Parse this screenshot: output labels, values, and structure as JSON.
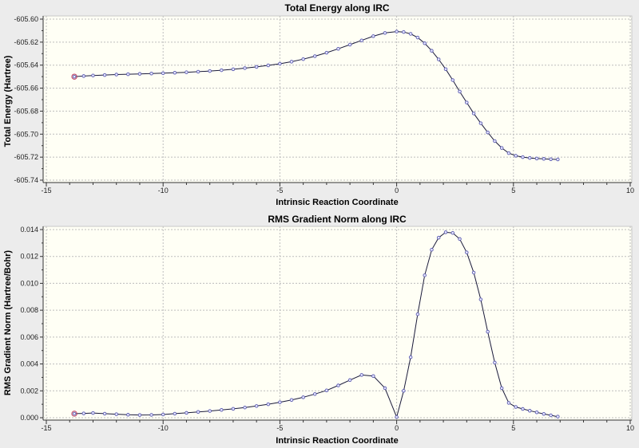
{
  "chart_data": [
    {
      "type": "line",
      "title": "Total Energy along IRC",
      "xlabel": "Intrinsic Reaction Coordinate",
      "ylabel": "Total Energy (Hartree)",
      "xlim": [
        -15,
        10
      ],
      "ylim": [
        -605.74,
        -605.6
      ],
      "xticks": [
        "-15",
        "-10",
        "-5",
        "0",
        "5",
        "10"
      ],
      "yticks": [
        "-605.60",
        "-605.62",
        "-605.64",
        "-605.66",
        "-605.68",
        "-605.70",
        "-605.72",
        "-605.74"
      ],
      "grid": true,
      "line_color": "#1a1a3a",
      "marker_color": "#5a5ab0",
      "highlight_color": "#c04060",
      "x": [
        -13.8,
        -13.4,
        -13.0,
        -12.5,
        -12,
        -11.5,
        -11,
        -10.5,
        -10,
        -9.5,
        -9,
        -8.5,
        -8,
        -7.5,
        -7,
        -6.5,
        -6,
        -5.5,
        -5,
        -4.5,
        -4,
        -3.5,
        -3,
        -2.5,
        -2,
        -1.5,
        -1,
        -0.5,
        0,
        0.3,
        0.6,
        0.9,
        1.2,
        1.5,
        1.8,
        2.1,
        2.4,
        2.7,
        3.0,
        3.3,
        3.6,
        3.9,
        4.2,
        4.5,
        4.8,
        5.1,
        5.4,
        5.7,
        6.0,
        6.3,
        6.6,
        6.9
      ],
      "y": [
        -605.65,
        -605.6495,
        -605.649,
        -605.6486,
        -605.6482,
        -605.6479,
        -605.6476,
        -605.6473,
        -605.647,
        -605.6466,
        -605.6462,
        -605.6457,
        -605.6451,
        -605.6444,
        -605.6436,
        -605.6426,
        -605.6415,
        -605.6402,
        -605.6388,
        -605.637,
        -605.6348,
        -605.6322,
        -605.6292,
        -605.6258,
        -605.6222,
        -605.6185,
        -605.6148,
        -605.612,
        -605.6108,
        -605.6112,
        -605.6128,
        -605.616,
        -605.621,
        -605.6275,
        -605.635,
        -605.6435,
        -605.653,
        -605.663,
        -605.6725,
        -605.682,
        -605.6905,
        -605.6985,
        -605.706,
        -605.712,
        -605.7165,
        -605.7188,
        -605.72,
        -605.7207,
        -605.7212,
        -605.7215,
        -605.7218,
        -605.722
      ]
    },
    {
      "type": "line",
      "title": "RMS Gradient Norm along IRC",
      "xlabel": "Intrinsic Reaction Coordinate",
      "ylabel": "RMS Gradient Norm (Hartree/Bohr)",
      "xlim": [
        -15,
        10
      ],
      "ylim": [
        0,
        0.014
      ],
      "xticks": [
        "-15",
        "-10",
        "-5",
        "0",
        "5",
        "10"
      ],
      "yticks": [
        "0.014",
        "0.012",
        "0.010",
        "0.008",
        "0.006",
        "0.004",
        "0.002",
        "0.000"
      ],
      "grid": true,
      "line_color": "#1a1a3a",
      "marker_color": "#5a5ab0",
      "highlight_color": "#c04060",
      "x": [
        -13.8,
        -13.4,
        -13.0,
        -12.5,
        -12,
        -11.5,
        -11,
        -10.5,
        -10,
        -9.5,
        -9,
        -8.5,
        -8,
        -7.5,
        -7,
        -6.5,
        -6,
        -5.5,
        -5,
        -4.5,
        -4,
        -3.5,
        -3,
        -2.5,
        -2,
        -1.5,
        -1,
        -0.5,
        0,
        0.3,
        0.6,
        0.9,
        1.2,
        1.5,
        1.8,
        2.1,
        2.4,
        2.7,
        3.0,
        3.3,
        3.6,
        3.9,
        4.2,
        4.5,
        4.8,
        5.1,
        5.4,
        5.7,
        6.0,
        6.3,
        6.6,
        6.9
      ],
      "y": [
        0.0003,
        0.00032,
        0.00035,
        0.0003,
        0.00026,
        0.00022,
        0.0002,
        0.00021,
        0.00024,
        0.0003,
        0.00036,
        0.00043,
        0.0005,
        0.00058,
        0.00066,
        0.00076,
        0.00087,
        0.001,
        0.00115,
        0.00132,
        0.00152,
        0.00176,
        0.00203,
        0.0024,
        0.0028,
        0.00318,
        0.0031,
        0.0022,
        5e-05,
        0.002,
        0.0045,
        0.0077,
        0.0106,
        0.0125,
        0.0134,
        0.0138,
        0.01375,
        0.0133,
        0.0123,
        0.0108,
        0.0088,
        0.0064,
        0.0041,
        0.0022,
        0.0011,
        0.0008,
        0.00065,
        0.00052,
        0.0004,
        0.00028,
        0.00018,
        8e-05
      ]
    }
  ]
}
